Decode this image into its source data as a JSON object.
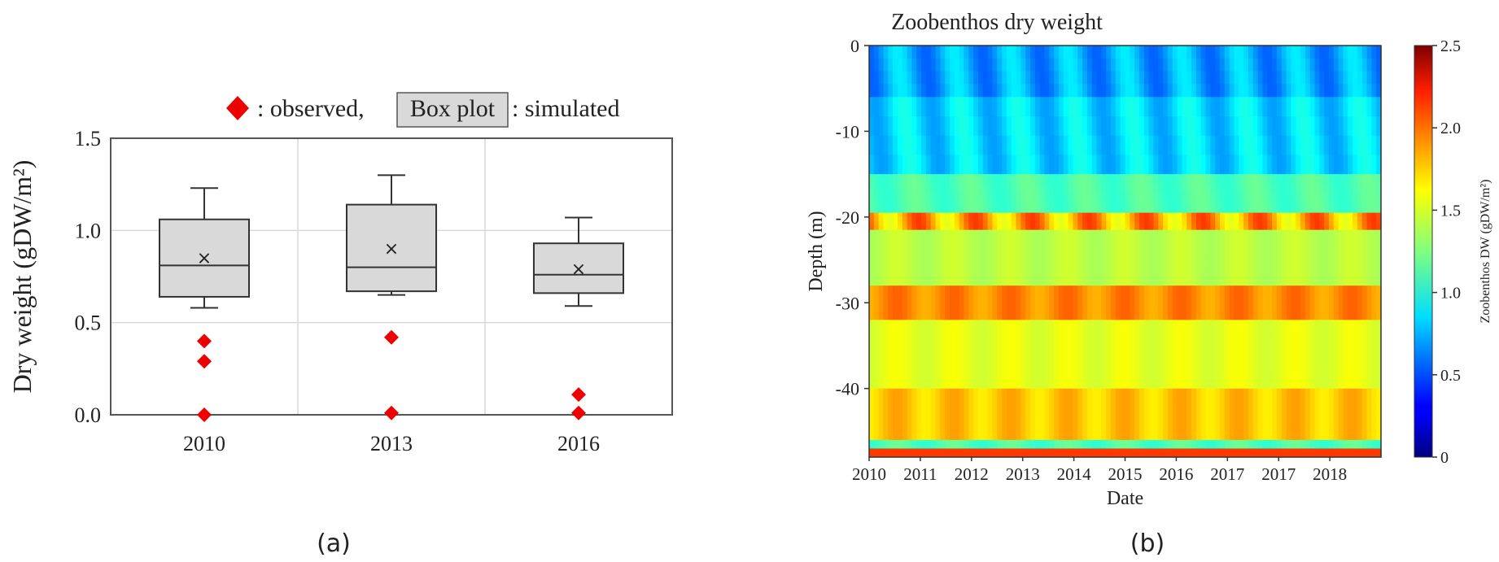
{
  "panels": {
    "a_label": "(a)",
    "b_label": "(b)"
  },
  "legend_a": {
    "observed_text": ": observed,",
    "box_text": "Box plot",
    "simulated_text": ": simulated"
  },
  "colors": {
    "observed": "#ee0000",
    "box_fill": "#d9d9d9",
    "box_stroke": "#333333",
    "grid": "#d9d9d9"
  },
  "chart_data": [
    {
      "type": "box",
      "title": "",
      "xlabel": "",
      "ylabel": "Dry weight (gDW/m²)",
      "categories": [
        "2010",
        "2013",
        "2016"
      ],
      "ylim": [
        0,
        1.5
      ],
      "yticks": [
        "0.0",
        "0.5",
        "1.0",
        "1.5"
      ],
      "grid": true,
      "legend_position": "top",
      "boxes": [
        {
          "category": "2010",
          "whisker_low": 0.58,
          "q1": 0.64,
          "median": 0.81,
          "q3": 1.06,
          "whisker_high": 1.23,
          "mean": 0.85
        },
        {
          "category": "2013",
          "whisker_low": 0.65,
          "q1": 0.67,
          "median": 0.8,
          "q3": 1.14,
          "whisker_high": 1.3,
          "mean": 0.9
        },
        {
          "category": "2016",
          "whisker_low": 0.59,
          "q1": 0.66,
          "median": 0.76,
          "q3": 0.93,
          "whisker_high": 1.07,
          "mean": 0.79
        }
      ],
      "observed": [
        {
          "category": "2010",
          "values": [
            0.4,
            0.29,
            0.0
          ]
        },
        {
          "category": "2013",
          "values": [
            0.42,
            0.01
          ]
        },
        {
          "category": "2016",
          "values": [
            0.11,
            0.01
          ]
        }
      ]
    },
    {
      "type": "heatmap",
      "title": "Zoobenthos dry weight",
      "xlabel": "Date",
      "ylabel": "Depth (m)",
      "xticks": [
        "2010",
        "2011",
        "2012",
        "2013",
        "2014",
        "2015",
        "2016",
        "2017",
        "2017",
        "2018"
      ],
      "yticks": [
        "0",
        "-10",
        "-20",
        "-30",
        "-40"
      ],
      "ylim": [
        -48,
        0
      ],
      "colorbar": {
        "label": "Zoobenthos DW (gDW/m²)",
        "range": [
          0,
          2.5
        ],
        "ticks": [
          "0",
          "0.5",
          "1.0",
          "1.5",
          "2.0",
          "2.5"
        ],
        "colormap": "jet"
      },
      "x_range_years": [
        2010,
        2019
      ],
      "depth_profile": [
        {
          "depth_top": 0,
          "depth_bottom": -6,
          "dry_season_value": 0.55,
          "wet_season_value": 0.9
        },
        {
          "depth_top": -6,
          "depth_bottom": -15,
          "dry_season_value": 0.7,
          "wet_season_value": 1.0
        },
        {
          "depth_top": -15,
          "depth_bottom": -19.5,
          "dry_season_value": 1.05,
          "wet_season_value": 1.2
        },
        {
          "depth_top": -19.5,
          "depth_bottom": -21.5,
          "dry_season_value": 1.5,
          "wet_season_value": 2.05
        },
        {
          "depth_top": -21.5,
          "depth_bottom": -28,
          "dry_season_value": 1.35,
          "wet_season_value": 1.45
        },
        {
          "depth_top": -28,
          "depth_bottom": -32,
          "dry_season_value": 1.75,
          "wet_season_value": 1.95
        },
        {
          "depth_top": -32,
          "depth_bottom": -40,
          "dry_season_value": 1.45,
          "wet_season_value": 1.55
        },
        {
          "depth_top": -40,
          "depth_bottom": -46,
          "dry_season_value": 1.6,
          "wet_season_value": 1.8
        },
        {
          "depth_top": -46,
          "depth_bottom": -47,
          "dry_season_value": 1.05,
          "wet_season_value": 1.2
        },
        {
          "depth_top": -47,
          "depth_bottom": -48,
          "dry_season_value": 2.05,
          "wet_season_value": 2.05
        }
      ]
    }
  ]
}
